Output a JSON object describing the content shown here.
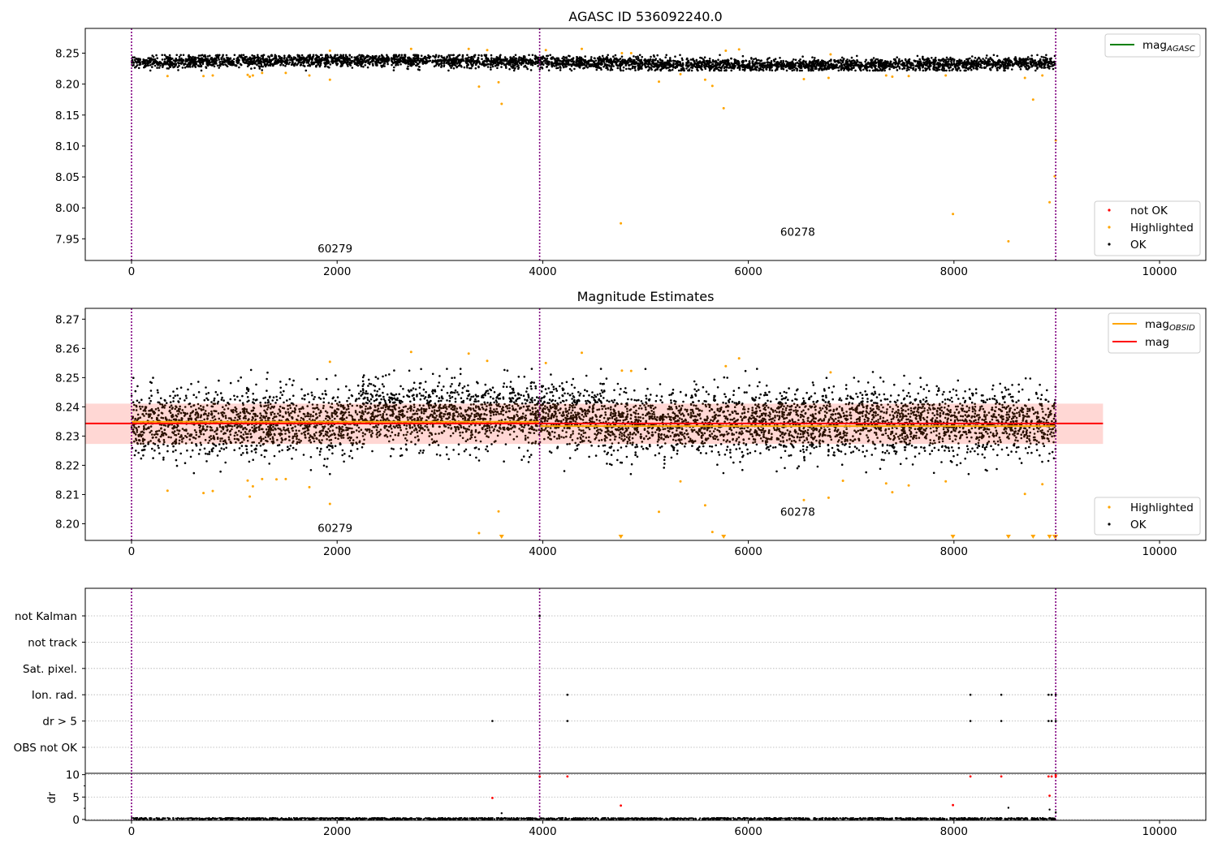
{
  "colors": {
    "ok": "#000000",
    "highlighted": "#ffa500",
    "not_ok": "#ff0000",
    "mag_line": "#ff0000",
    "mag_band": "#ffd0cc",
    "obsid_line": "#ffa500",
    "agasc_line": "#008000",
    "obs_boundary": "#800080",
    "grid": "#b0b0b0"
  },
  "chart_data": [
    {
      "type": "scatter",
      "title": "AGASC ID 536092240.0",
      "xlim": [
        -450,
        10450
      ],
      "ylim": [
        7.915,
        8.29
      ],
      "xticks": [
        0,
        2000,
        4000,
        6000,
        8000,
        10000
      ],
      "yticks": [
        7.95,
        8.0,
        8.05,
        8.1,
        8.15,
        8.2,
        8.25
      ],
      "obs_boundaries": [
        0,
        3970,
        8990
      ],
      "annotations": [
        {
          "text": "60279",
          "x": 1980,
          "y": 7.928
        },
        {
          "text": "60278",
          "x": 6480,
          "y": 7.955
        }
      ],
      "line_legend": [
        {
          "label": "mag",
          "subscript": "AGASC",
          "color": "#008000"
        }
      ],
      "point_legend": [
        {
          "label": "not OK",
          "color": "#ff0000"
        },
        {
          "label": "Highlighted",
          "color": "#ffa500"
        },
        {
          "label": "OK",
          "color": "#000000"
        }
      ],
      "ok_band": {
        "x_range": [
          0,
          8990
        ],
        "y_range": [
          8.222,
          8.247
        ],
        "n_points": 4500
      },
      "highlighted_points": [
        [
          350,
          8.213
        ],
        [
          700,
          8.213
        ],
        [
          790,
          8.214
        ],
        [
          1130,
          8.215
        ],
        [
          1150,
          8.212
        ],
        [
          1180,
          8.214
        ],
        [
          1270,
          8.218
        ],
        [
          1500,
          8.218
        ],
        [
          1730,
          8.214
        ],
        [
          1930,
          8.207
        ],
        [
          1930,
          8.254
        ],
        [
          2720,
          8.257
        ],
        [
          3280,
          8.257
        ],
        [
          3380,
          8.196
        ],
        [
          3460,
          8.255
        ],
        [
          3570,
          8.203
        ],
        [
          3600,
          8.168
        ],
        [
          4030,
          8.255
        ],
        [
          4380,
          8.257
        ],
        [
          4760,
          7.975
        ],
        [
          4770,
          8.25
        ],
        [
          4860,
          8.25
        ],
        [
          5130,
          8.204
        ],
        [
          5340,
          8.216
        ],
        [
          5580,
          8.207
        ],
        [
          5650,
          8.197
        ],
        [
          5760,
          8.161
        ],
        [
          5780,
          8.254
        ],
        [
          5910,
          8.256
        ],
        [
          6540,
          8.208
        ],
        [
          6780,
          8.21
        ],
        [
          6800,
          8.248
        ],
        [
          7340,
          8.214
        ],
        [
          7400,
          8.212
        ],
        [
          7560,
          8.213
        ],
        [
          7920,
          8.214
        ],
        [
          7990,
          7.99
        ],
        [
          8530,
          7.946
        ],
        [
          8690,
          8.21
        ],
        [
          8770,
          8.175
        ],
        [
          8860,
          8.214
        ],
        [
          8930,
          8.009
        ],
        [
          8980,
          8.051
        ],
        [
          8990,
          8.109
        ]
      ]
    },
    {
      "type": "scatter",
      "title": "Magnitude Estimates",
      "xlim": [
        -450,
        10450
      ],
      "ylim": [
        8.1943,
        8.2737
      ],
      "xticks": [
        0,
        2000,
        4000,
        6000,
        8000,
        10000
      ],
      "yticks": [
        8.2,
        8.21,
        8.22,
        8.23,
        8.24,
        8.25,
        8.26,
        8.27
      ],
      "obs_boundaries": [
        0,
        3970,
        8990
      ],
      "annotations": [
        {
          "text": "60279",
          "x": 1980,
          "y": 8.1972
        },
        {
          "text": "60278",
          "x": 6480,
          "y": 8.2027
        }
      ],
      "mag": {
        "value": 8.2343,
        "x_range": [
          -450,
          9450
        ]
      },
      "mag_band": {
        "y_range": [
          8.2273,
          8.2411
        ],
        "x_range": [
          -450,
          9450
        ]
      },
      "mag_obsid": [
        {
          "x_range": [
            0,
            3970
          ],
          "value": 8.2349
        },
        {
          "x_range": [
            3970,
            8990
          ],
          "value": 8.2334
        }
      ],
      "line_legend": [
        {
          "label": "mag",
          "subscript": "OBSID",
          "color": "#ffa500"
        },
        {
          "label": "mag",
          "subscript": "",
          "color": "#ff0000"
        }
      ],
      "point_legend": [
        {
          "label": "Highlighted",
          "color": "#ffa500"
        },
        {
          "label": "OK",
          "color": "#000000"
        }
      ],
      "ok_band": {
        "x_range": [
          0,
          8990
        ],
        "y_range": [
          8.217,
          8.253
        ],
        "n_points": 6000
      },
      "highlighted_points": [
        [
          350,
          8.2113
        ],
        [
          700,
          8.2105
        ],
        [
          790,
          8.2112
        ],
        [
          1130,
          8.2148
        ],
        [
          1150,
          8.2093
        ],
        [
          1180,
          8.2128
        ],
        [
          1270,
          8.2153
        ],
        [
          1410,
          8.2152
        ],
        [
          1500,
          8.2153
        ],
        [
          1730,
          8.2125
        ],
        [
          1930,
          8.2068
        ],
        [
          1930,
          8.2554
        ],
        [
          2720,
          8.2588
        ],
        [
          3280,
          8.2582
        ],
        [
          3380,
          8.1968
        ],
        [
          3460,
          8.2557
        ],
        [
          3570,
          8.2042
        ],
        [
          4030,
          8.255
        ],
        [
          4380,
          8.2585
        ],
        [
          4770,
          8.2524
        ],
        [
          4860,
          8.2523
        ],
        [
          5130,
          8.2041
        ],
        [
          5340,
          8.2145
        ],
        [
          5580,
          8.2063
        ],
        [
          5650,
          8.1972
        ],
        [
          5780,
          8.2539
        ],
        [
          5910,
          8.2566
        ],
        [
          6540,
          8.2081
        ],
        [
          6780,
          8.2089
        ],
        [
          6800,
          8.2518
        ],
        [
          6920,
          8.2147
        ],
        [
          7340,
          8.2138
        ],
        [
          7400,
          8.2108
        ],
        [
          7560,
          8.2131
        ],
        [
          7920,
          8.2145
        ],
        [
          8690,
          8.2102
        ],
        [
          8860,
          8.2135
        ]
      ],
      "offscale_low_x": [
        3600,
        4760,
        5760,
        7990,
        8530,
        8770,
        8930,
        8980,
        8990
      ]
    },
    {
      "type": "scatter",
      "title": "",
      "xlim": [
        -450,
        10450
      ],
      "yticks_categorical": [
        "OBS not OK",
        "dr > 5",
        "Ion. rad.",
        "Sat. pixel.",
        "not track",
        "not Kalman"
      ],
      "obs_boundaries": [
        0,
        3970,
        8990
      ],
      "flag_points": [
        {
          "row": "not Kalman",
          "x": 3970
        },
        {
          "row": "Ion. rad.",
          "x": 4240
        },
        {
          "row": "Ion. rad.",
          "x": 8160
        },
        {
          "row": "Ion. rad.",
          "x": 8460
        },
        {
          "row": "Ion. rad.",
          "x": 8920
        },
        {
          "row": "Ion. rad.",
          "x": 8950
        },
        {
          "row": "Ion. rad.",
          "x": 8990
        },
        {
          "row": "dr > 5",
          "x": 3510
        },
        {
          "row": "dr > 5",
          "x": 4240
        },
        {
          "row": "dr > 5",
          "x": 8160
        },
        {
          "row": "dr > 5",
          "x": 8460
        },
        {
          "row": "dr > 5",
          "x": 8920
        },
        {
          "row": "dr > 5",
          "x": 8950
        },
        {
          "row": "dr > 5",
          "x": 8990
        }
      ]
    },
    {
      "type": "scatter",
      "ylabel": "dr",
      "xlim": [
        -450,
        10450
      ],
      "ylim": [
        -0.2,
        10.3
      ],
      "xticks": [
        0,
        2000,
        4000,
        6000,
        8000,
        10000
      ],
      "yticks": [
        0,
        5,
        10
      ],
      "obs_boundaries": [
        0,
        3970,
        8990
      ],
      "ok_band": {
        "x_range": [
          0,
          8990
        ],
        "y_range": [
          0,
          0.35
        ],
        "n_points": 1800
      },
      "ok_points": [
        [
          3600,
          1.4
        ],
        [
          8530,
          2.6
        ],
        [
          8930,
          2.2
        ],
        [
          8990,
          1.6
        ]
      ],
      "not_ok_points": [
        [
          3510,
          4.8
        ],
        [
          3970,
          9.6
        ],
        [
          4240,
          9.6
        ],
        [
          4760,
          3.1
        ],
        [
          7990,
          3.2
        ],
        [
          8160,
          9.6
        ],
        [
          8460,
          9.6
        ],
        [
          8920,
          9.6
        ],
        [
          8930,
          5.3
        ],
        [
          8950,
          9.6
        ],
        [
          8990,
          9.6
        ],
        [
          8990,
          9.9
        ]
      ]
    }
  ],
  "xtick_labels": [
    "0",
    "2000",
    "4000",
    "6000",
    "8000",
    "10000"
  ]
}
